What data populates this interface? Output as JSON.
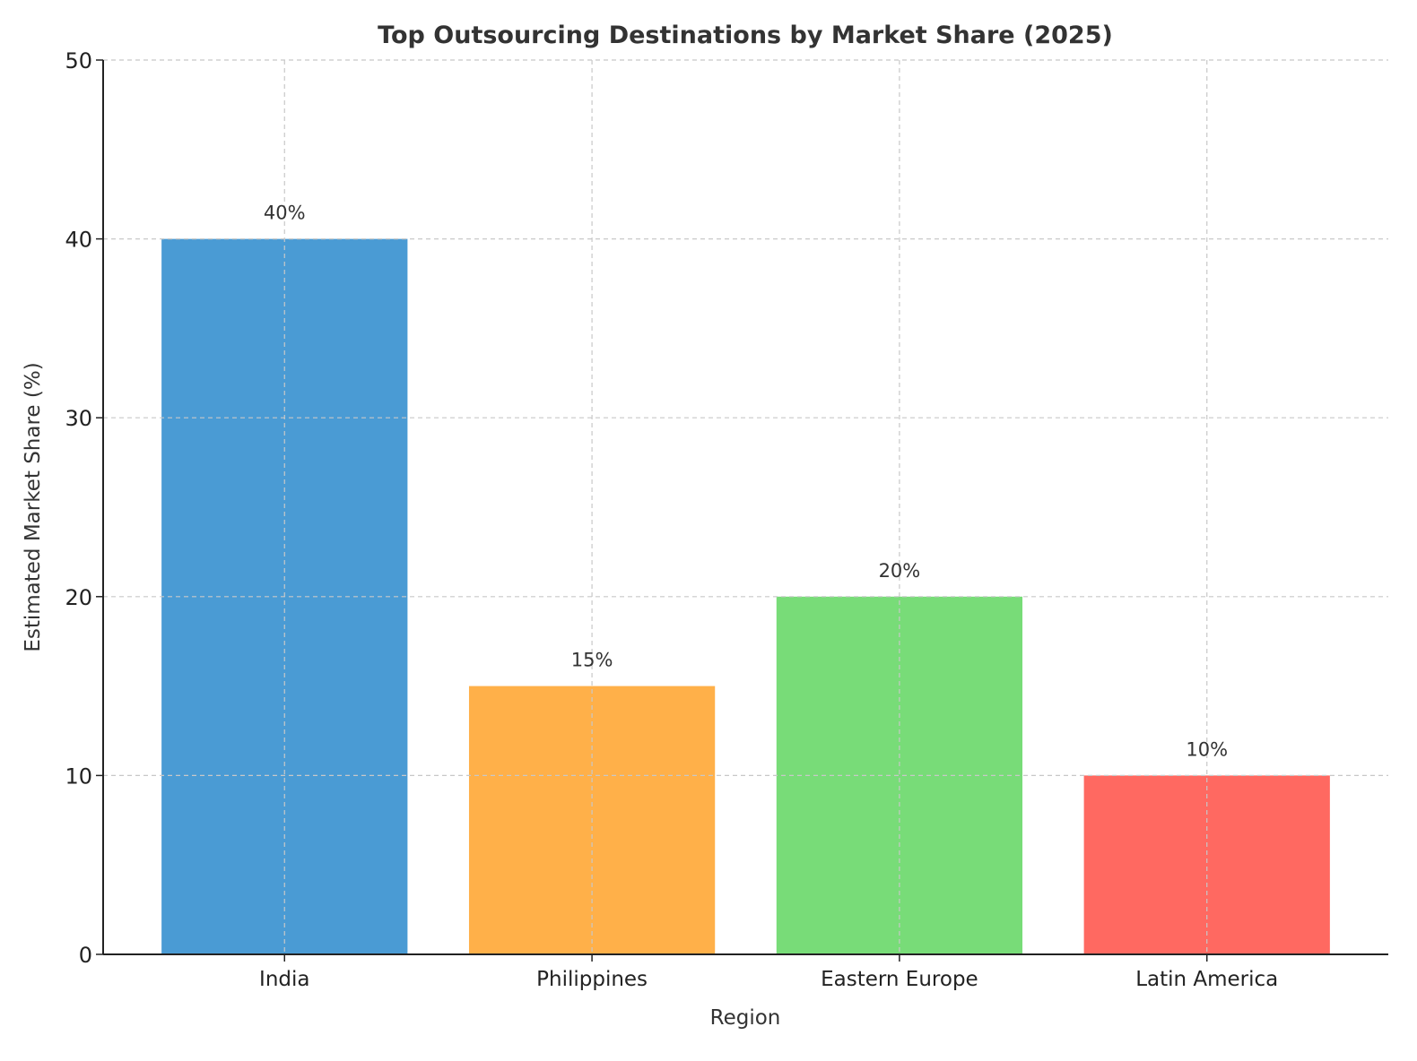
{
  "chart_data": {
    "type": "bar",
    "title": "Top Outsourcing Destinations by Market Share (2025)",
    "xlabel": "Region",
    "ylabel": "Estimated Market Share (%)",
    "categories": [
      "India",
      "Philippines",
      "Eastern Europe",
      "Latin America"
    ],
    "values": [
      40,
      15,
      20,
      10
    ],
    "data_labels": [
      "40%",
      "15%",
      "20%",
      "10%"
    ],
    "colors": [
      "#4a9bd4",
      "#ffb049",
      "#78dc78",
      "#ff6961"
    ],
    "ylim": [
      0,
      50
    ],
    "yticks": [
      0,
      10,
      20,
      30,
      40,
      50
    ],
    "grid": true,
    "legend": "none"
  }
}
